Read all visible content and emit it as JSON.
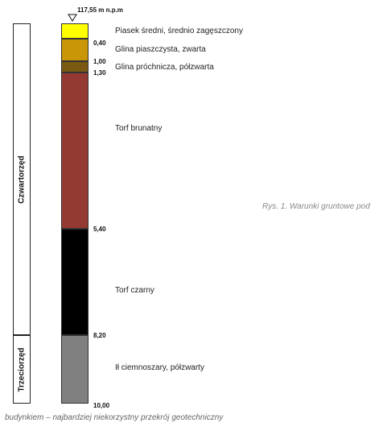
{
  "elevation": {
    "label": "117,55 m n.p.m"
  },
  "eras": [
    {
      "name": "Czwartorzęd",
      "from_depth": 0,
      "to_depth": 8.2
    },
    {
      "name": "Trzeciorzęd",
      "from_depth": 8.2,
      "to_depth": 10.0
    }
  ],
  "layers": [
    {
      "from_depth": 0.0,
      "to_depth": 0.4,
      "color": "#ffff00",
      "description": "Piasek średni, średnio zagęszczony",
      "bottom_label": "0,40"
    },
    {
      "from_depth": 0.4,
      "to_depth": 1.0,
      "color": "#c89606",
      "description": "Glina piaszczysta, zwarta",
      "bottom_label": "1,00"
    },
    {
      "from_depth": 1.0,
      "to_depth": 1.3,
      "color": "#7a5a12",
      "description": "Glina próchnicza, półzwarta",
      "bottom_label": "1,30"
    },
    {
      "from_depth": 1.3,
      "to_depth": 5.4,
      "color": "#943a33",
      "description": "Torf brunatny",
      "bottom_label": "5,40"
    },
    {
      "from_depth": 5.4,
      "to_depth": 8.2,
      "color": "#000000",
      "description": "Torf czarny",
      "bottom_label": "8,20"
    },
    {
      "from_depth": 8.2,
      "to_depth": 10.0,
      "color": "#808080",
      "description": "Ił ciemnoszary, półzwarty",
      "bottom_label": "10,00"
    }
  ],
  "captions": {
    "right": "Rys. 1. Warunki gruntowe pod",
    "bottom": "budynkiem – najbardziej niekorzystny przekrój geotechniczny"
  }
}
